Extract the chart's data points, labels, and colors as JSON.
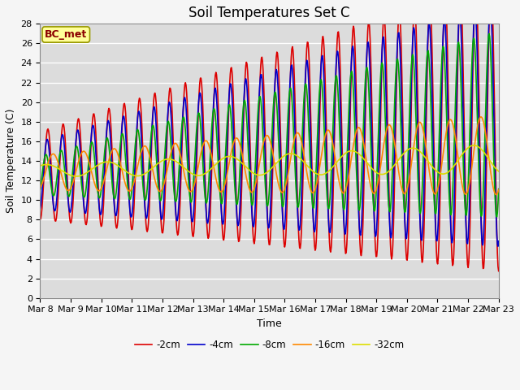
{
  "title": "Soil Temperatures Set C",
  "xlabel": "Time",
  "ylabel": "Soil Temperature (C)",
  "annotation": "BC_met",
  "ylim": [
    0,
    28
  ],
  "xlim": [
    0,
    15
  ],
  "x_tick_labels": [
    "Mar 8",
    "Mar 9",
    "Mar 10",
    "Mar 11",
    "Mar 12",
    "Mar 13",
    "Mar 14",
    "Mar 15",
    "Mar 16",
    "Mar 17",
    "Mar 18",
    "Mar 19",
    "Mar 20",
    "Mar 21",
    "Mar 22",
    "Mar 23"
  ],
  "legend_labels": [
    "-2cm",
    "-4cm",
    "-8cm",
    "-16cm",
    "-32cm"
  ],
  "line_colors": [
    "#dd0000",
    "#0000cc",
    "#00aa00",
    "#ff8800",
    "#dddd00"
  ],
  "line_widths": [
    1.2,
    1.2,
    1.2,
    1.2,
    1.2
  ],
  "plot_bg_color": "#dcdcdc",
  "grid_color": "#ffffff",
  "fig_bg_color": "#f5f5f5",
  "title_fontsize": 12,
  "label_fontsize": 9,
  "tick_fontsize": 8,
  "annotation_fontsize": 9
}
